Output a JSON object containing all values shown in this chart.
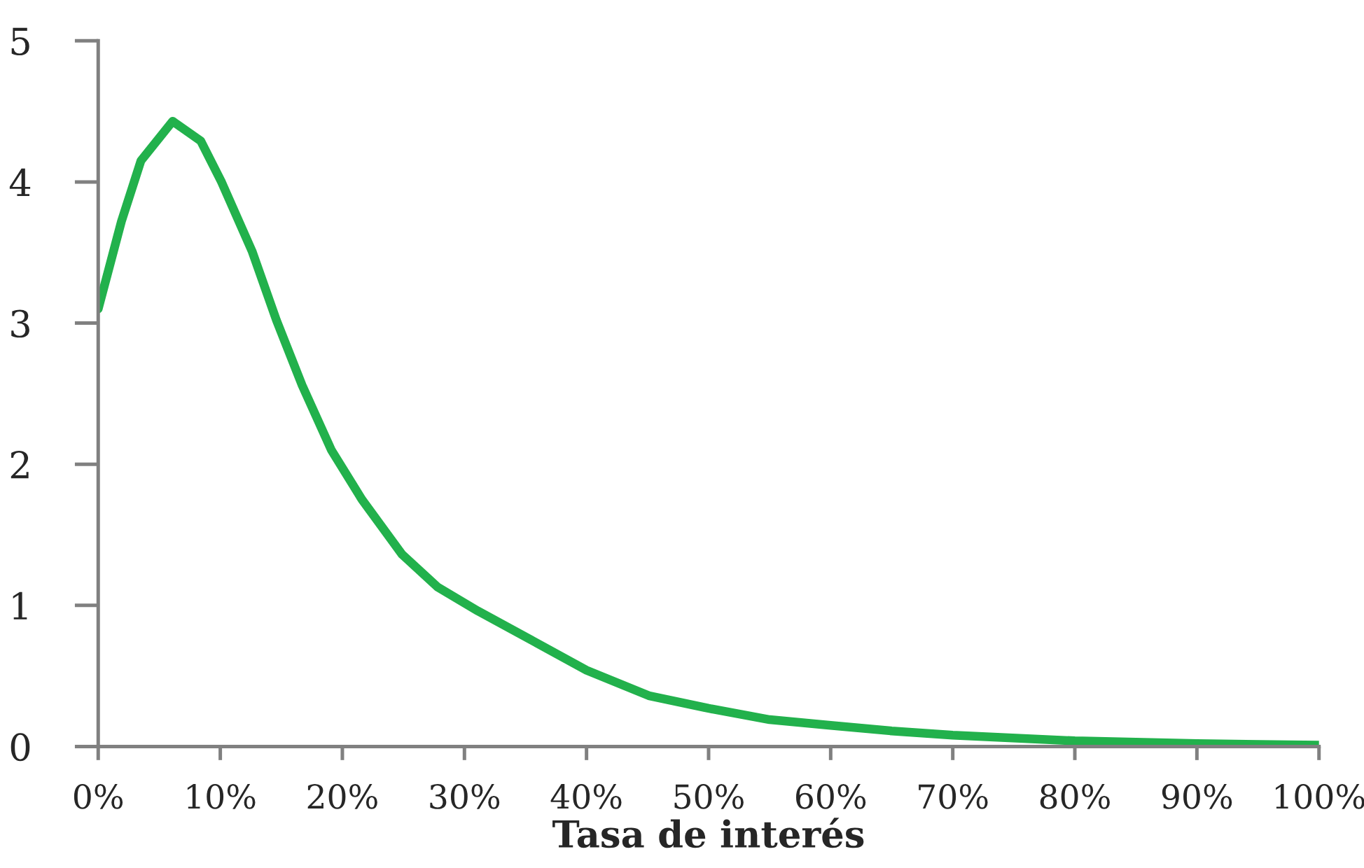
{
  "chart_data": {
    "type": "line",
    "xlabel": "Tasa de interés",
    "series": [
      {
        "color": "#22b14c",
        "x": [
          0,
          1.9,
          3.5,
          6.1,
          8.4,
          10.1,
          12.6,
          14.6,
          16.7,
          19.1,
          21.6,
          24.9,
          27.8,
          31.1,
          36.2,
          40,
          45.1,
          50,
          55,
          60,
          65,
          70,
          80,
          90,
          100
        ],
        "values": [
          3.1,
          3.72,
          4.15,
          4.43,
          4.29,
          4.0,
          3.51,
          3.02,
          2.56,
          2.1,
          1.75,
          1.36,
          1.13,
          0.96,
          0.72,
          0.54,
          0.36,
          0.27,
          0.19,
          0.15,
          0.11,
          0.08,
          0.04,
          0.02,
          0.01
        ]
      }
    ],
    "xlim": [
      0,
      100
    ],
    "ylim": [
      0,
      5
    ],
    "xticks": [
      {
        "value": 0,
        "label": "0%"
      },
      {
        "value": 10,
        "label": "10%"
      },
      {
        "value": 20,
        "label": "20%"
      },
      {
        "value": 30,
        "label": "30%"
      },
      {
        "value": 40,
        "label": "40%"
      },
      {
        "value": 50,
        "label": "50%"
      },
      {
        "value": 60,
        "label": "60%"
      },
      {
        "value": 70,
        "label": "70%"
      },
      {
        "value": 80,
        "label": "80%"
      },
      {
        "value": 90,
        "label": "90%"
      },
      {
        "value": 100,
        "label": "100%"
      }
    ],
    "yticks": [
      0,
      1,
      2,
      3,
      4,
      5
    ],
    "grid": false,
    "marker": "none",
    "line_style": "solid"
  }
}
